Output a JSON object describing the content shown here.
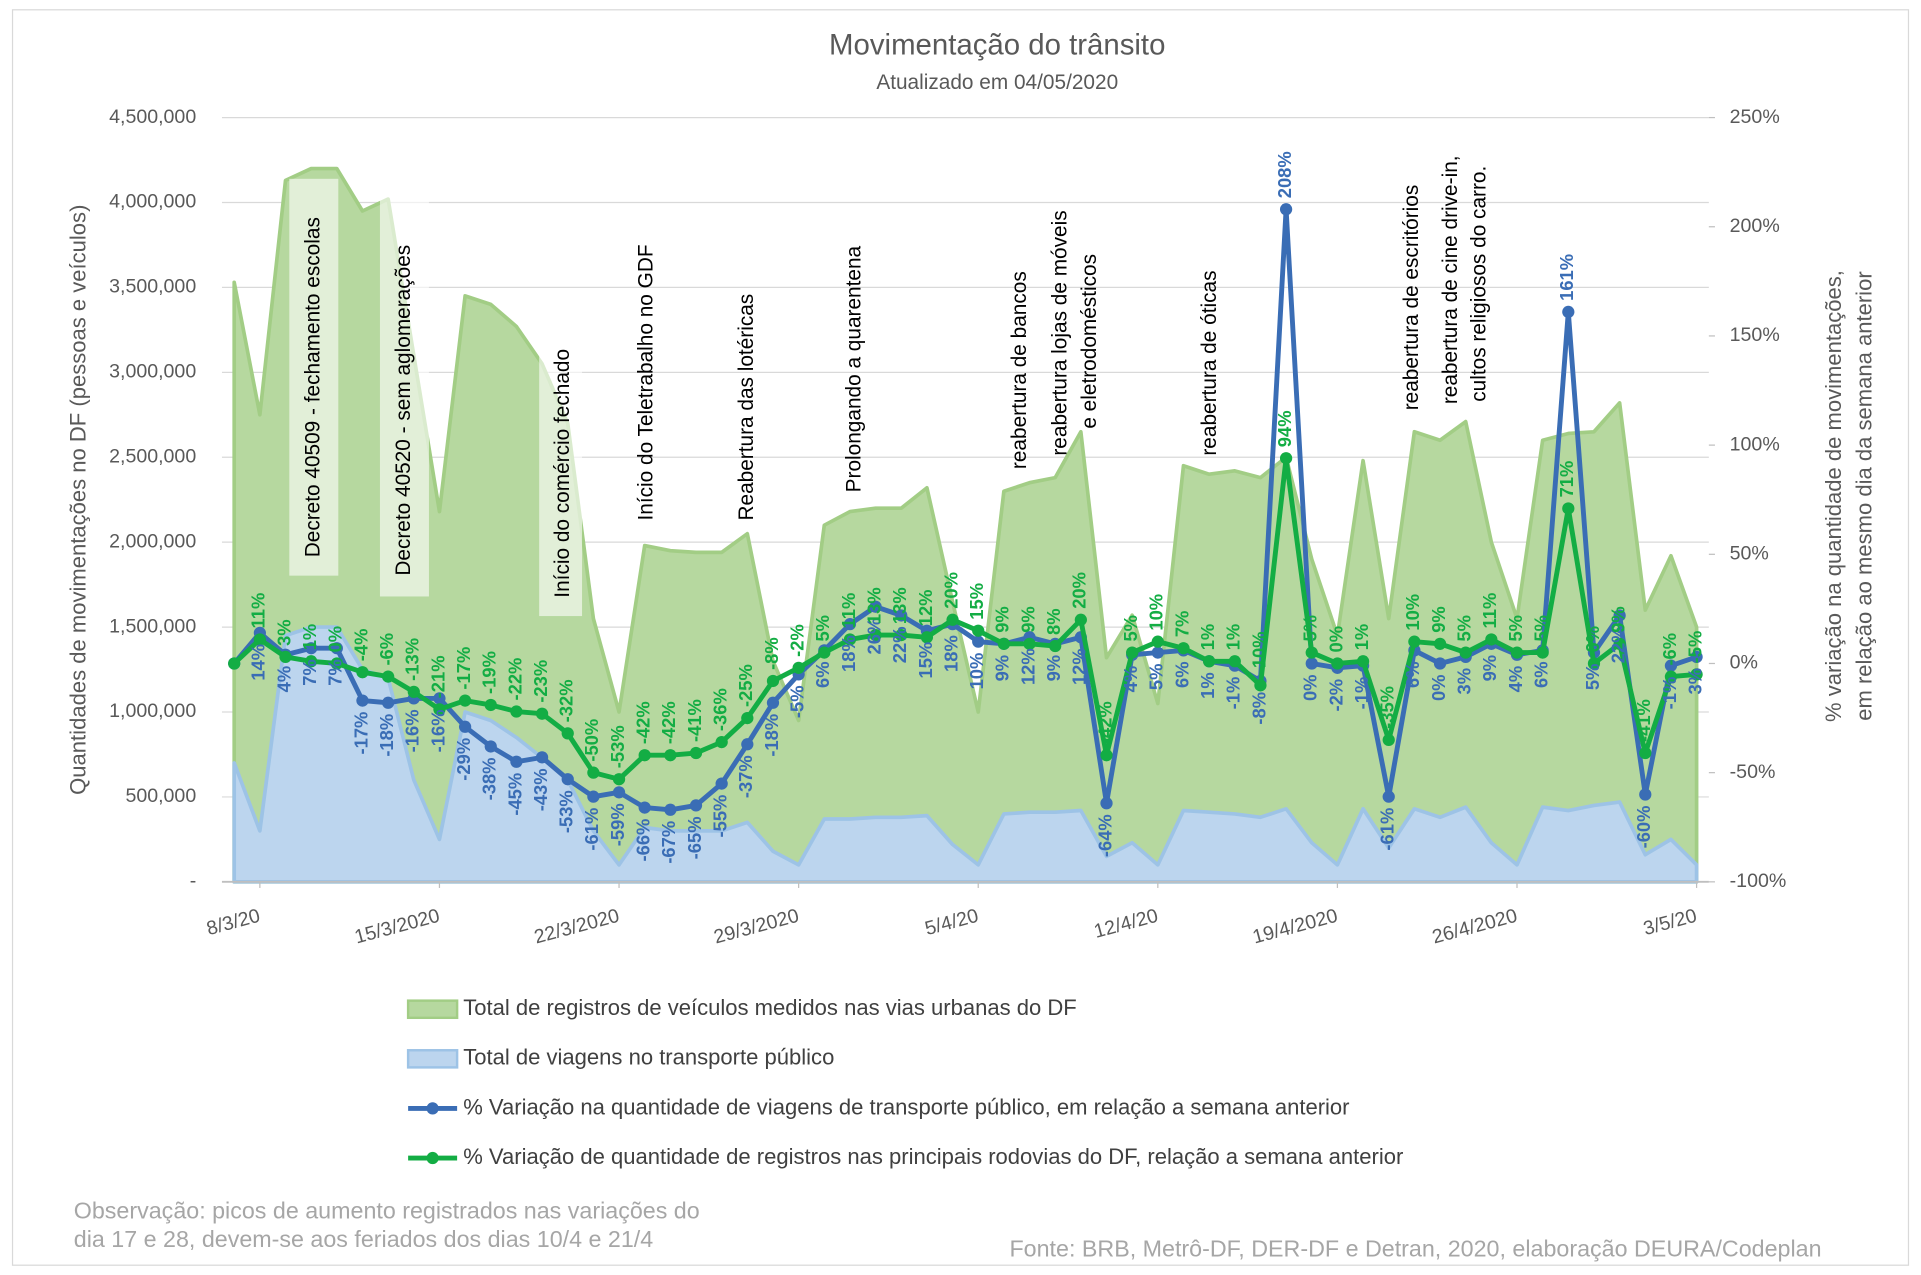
{
  "chart_data": {
    "type": "combo",
    "title": "Movimentação do trânsito",
    "subtitle": "Atualizado em 04/05/2020",
    "ylabel": "Quantidades de movimentações no DF (pessoas e veículos)",
    "y2label": [
      "% variação na quantidade de movimentações,",
      "em relação ao mesmo dia da semana anterior"
    ],
    "categories": [
      null,
      "8/3/20",
      null,
      null,
      null,
      null,
      null,
      null,
      "15/3/2020",
      null,
      null,
      null,
      null,
      null,
      null,
      "22/3/2020",
      null,
      null,
      null,
      null,
      null,
      null,
      "29/3/2020",
      null,
      null,
      null,
      null,
      null,
      null,
      "5/4/20",
      null,
      null,
      null,
      null,
      null,
      null,
      "12/4/20",
      null,
      null,
      null,
      null,
      null,
      null,
      "19/4/2020",
      null,
      null,
      null,
      null,
      null,
      null,
      "26/4/2020",
      null,
      null,
      null,
      null,
      null,
      null,
      "3/5/20"
    ],
    "ylim": [
      0,
      4500000
    ],
    "yticks": [
      {
        "value": 0,
        "label": "-"
      },
      {
        "value": 500000,
        "label": "500,000"
      },
      {
        "value": 1000000,
        "label": "1,000,000"
      },
      {
        "value": 1500000,
        "label": "1,500,000"
      },
      {
        "value": 2000000,
        "label": "2,000,000"
      },
      {
        "value": 2500000,
        "label": "2,500,000"
      },
      {
        "value": 3000000,
        "label": "3,000,000"
      },
      {
        "value": 3500000,
        "label": "3,500,000"
      },
      {
        "value": 4000000,
        "label": "4,000,000"
      },
      {
        "value": 4500000,
        "label": "4,500,000"
      }
    ],
    "y2lim": [
      -100,
      250
    ],
    "y2ticks": [
      {
        "value": -100,
        "label": "-100%"
      },
      {
        "value": -50,
        "label": "-50%"
      },
      {
        "value": 0,
        "label": "0%"
      },
      {
        "value": 50,
        "label": "50%"
      },
      {
        "value": 100,
        "label": "100%"
      },
      {
        "value": 150,
        "label": "150%"
      },
      {
        "value": 200,
        "label": "200%"
      },
      {
        "value": 250,
        "label": "250%"
      }
    ],
    "grid": true,
    "series": [
      {
        "name": "Total de registros de veículos medidos nas vias urbanas do DF",
        "type": "area",
        "color": "#b6d89f",
        "stroke": "#a2cd85",
        "values": [
          3530000,
          2750000,
          4130000,
          4200000,
          4200000,
          3950000,
          4020000,
          3100000,
          2180000,
          3450000,
          3400000,
          3270000,
          3050000,
          2700000,
          1550000,
          1000000,
          1980000,
          1950000,
          1940000,
          1940000,
          2050000,
          1300000,
          950000,
          2100000,
          2180000,
          2200000,
          2200000,
          2320000,
          1650000,
          1000000,
          2300000,
          2350000,
          2380000,
          2650000,
          1320000,
          1570000,
          1050000,
          2450000,
          2400000,
          2420000,
          2380000,
          2500000,
          1900000,
          1450000,
          2480000,
          1550000,
          2650000,
          2600000,
          2710000,
          2000000,
          1550000,
          2600000,
          2640000,
          2650000,
          2820000,
          1600000,
          1920000,
          1500000
        ]
      },
      {
        "name": "Total de viagens no transporte público",
        "type": "area",
        "color": "#bcd5ee",
        "stroke": "#9dc3e6",
        "values": [
          700000,
          300000,
          1450000,
          1500000,
          1500000,
          1250000,
          1200000,
          600000,
          250000,
          1000000,
          950000,
          850000,
          730000,
          600000,
          300000,
          100000,
          320000,
          300000,
          300000,
          300000,
          350000,
          180000,
          100000,
          370000,
          370000,
          380000,
          380000,
          390000,
          220000,
          100000,
          400000,
          410000,
          410000,
          420000,
          150000,
          230000,
          100000,
          420000,
          410000,
          400000,
          380000,
          430000,
          230000,
          100000,
          430000,
          200000,
          430000,
          380000,
          440000,
          230000,
          100000,
          440000,
          420000,
          450000,
          470000,
          160000,
          250000,
          100000
        ]
      },
      {
        "name": " % Variação na quantidade de viagens de transporte público, em relação a semana anterior",
        "type": "line",
        "axis": "y2",
        "color": "#3a6db5",
        "values": [
          0,
          14,
          4,
          7,
          7,
          -17,
          -18,
          -16,
          -16,
          -29,
          -38,
          -45,
          -43,
          -53,
          -61,
          -59,
          -66,
          -67,
          -65,
          -55,
          -37,
          -18,
          -5,
          6,
          18,
          26,
          22,
          15,
          18,
          10,
          9,
          12,
          9,
          12,
          -64,
          4,
          5,
          6,
          1,
          -1,
          -8,
          208,
          0,
          -2,
          -1,
          -61,
          6,
          0,
          3,
          9,
          4,
          6,
          161,
          5,
          22,
          -60,
          -1,
          3
        ],
        "value_labels": [
          null,
          "14%",
          "4%",
          "7%",
          "7%",
          "-17%",
          "-18%",
          "-16%",
          "-16%",
          "-29%",
          "-38%",
          "-45%",
          "-43%",
          "-53%",
          "-61%",
          "-59%",
          "-66%",
          "-67%",
          "-65%",
          "-55%",
          "-37%",
          "-18%",
          "-5%",
          "6%",
          "18%",
          "26%",
          "22%",
          "15%",
          "18%",
          "10%",
          "9%",
          "12%",
          "9%",
          "12%",
          "-64%",
          "4%",
          "5%",
          "6%",
          "1%",
          "-1%",
          "-8%",
          "208%",
          "0%",
          "-2%",
          "-1%",
          "-61%",
          "6%",
          "0%",
          "3%",
          "9%",
          "4%",
          "6%",
          "161%",
          "5%",
          "22%",
          "-60%",
          "-1%",
          "3%"
        ]
      },
      {
        "name": "% Variação de quantidade de registros nas principais rodovias do DF, relação a semana anterior",
        "type": "line",
        "axis": "y2",
        "color": "#13ad44",
        "values": [
          0,
          11,
          3,
          1,
          0,
          -4,
          -6,
          -13,
          -21,
          -17,
          -19,
          -22,
          -23,
          -32,
          -50,
          -53,
          -42,
          -42,
          -41,
          -36,
          -25,
          -8,
          -2,
          5,
          11,
          13,
          13,
          12,
          20,
          15,
          9,
          9,
          8,
          20,
          -42,
          5,
          10,
          7,
          1,
          1,
          -10,
          94,
          5,
          0,
          1,
          -35,
          10,
          9,
          5,
          11,
          5,
          5,
          71,
          0,
          9,
          -41,
          -6,
          -5
        ],
        "value_labels": [
          null,
          "11%",
          "3%",
          "1%",
          "0%",
          "-4%",
          "-6%",
          "-13%",
          "-21%",
          "-17%",
          "-19%",
          "-22%",
          "-23%",
          "-32%",
          "-50%",
          "-53%",
          "-42%",
          "-42%",
          "-41%",
          "-36%",
          "-25%",
          "-8%",
          "-2%",
          "5%",
          "11%",
          "13%",
          "13%",
          "12%",
          "20%",
          "15%",
          "9%",
          "9%",
          "8%",
          "20%",
          "-42%",
          "5%",
          "10%",
          "7%",
          "1%",
          "1%",
          "-10%",
          "94%",
          "5%",
          "0%",
          "1%",
          "-35%",
          "10%",
          "9%",
          "5%",
          "11%",
          "5%",
          "5%",
          "71%",
          "0%",
          "9%",
          "-41%",
          "-6%",
          "-5%"
        ]
      }
    ],
    "annotations": [
      [
        "Decreto 40509 - fechamento escolas"
      ],
      [
        "Decreto 40520 - sem aglomerações"
      ],
      [
        "Início do comércio fechado"
      ],
      [
        "Início do Teletrabalho no GDF"
      ],
      [
        "Reabertura das lotéricas"
      ],
      [
        "Prolongando a quarentena"
      ],
      [
        "reabertura de bancos"
      ],
      [
        "reabertura lojas de móveis",
        "e eletrodomésticos"
      ],
      [
        "reabertura de óticas"
      ],
      [
        "reabertura de escritórios"
      ],
      [
        "reabertura de cine drive-in,",
        "cultos religiosos do carro."
      ]
    ],
    "notes": [
      "Observação: picos de aumento registrados nas variações do",
      "dia 17 e 28, devem-se aos feriados dos dias 10/4 e 21/4"
    ],
    "source": "Fonte: BRB, Metrô-DF, DER-DF e Detran, 2020, elaboração DEURA/Codeplan"
  }
}
